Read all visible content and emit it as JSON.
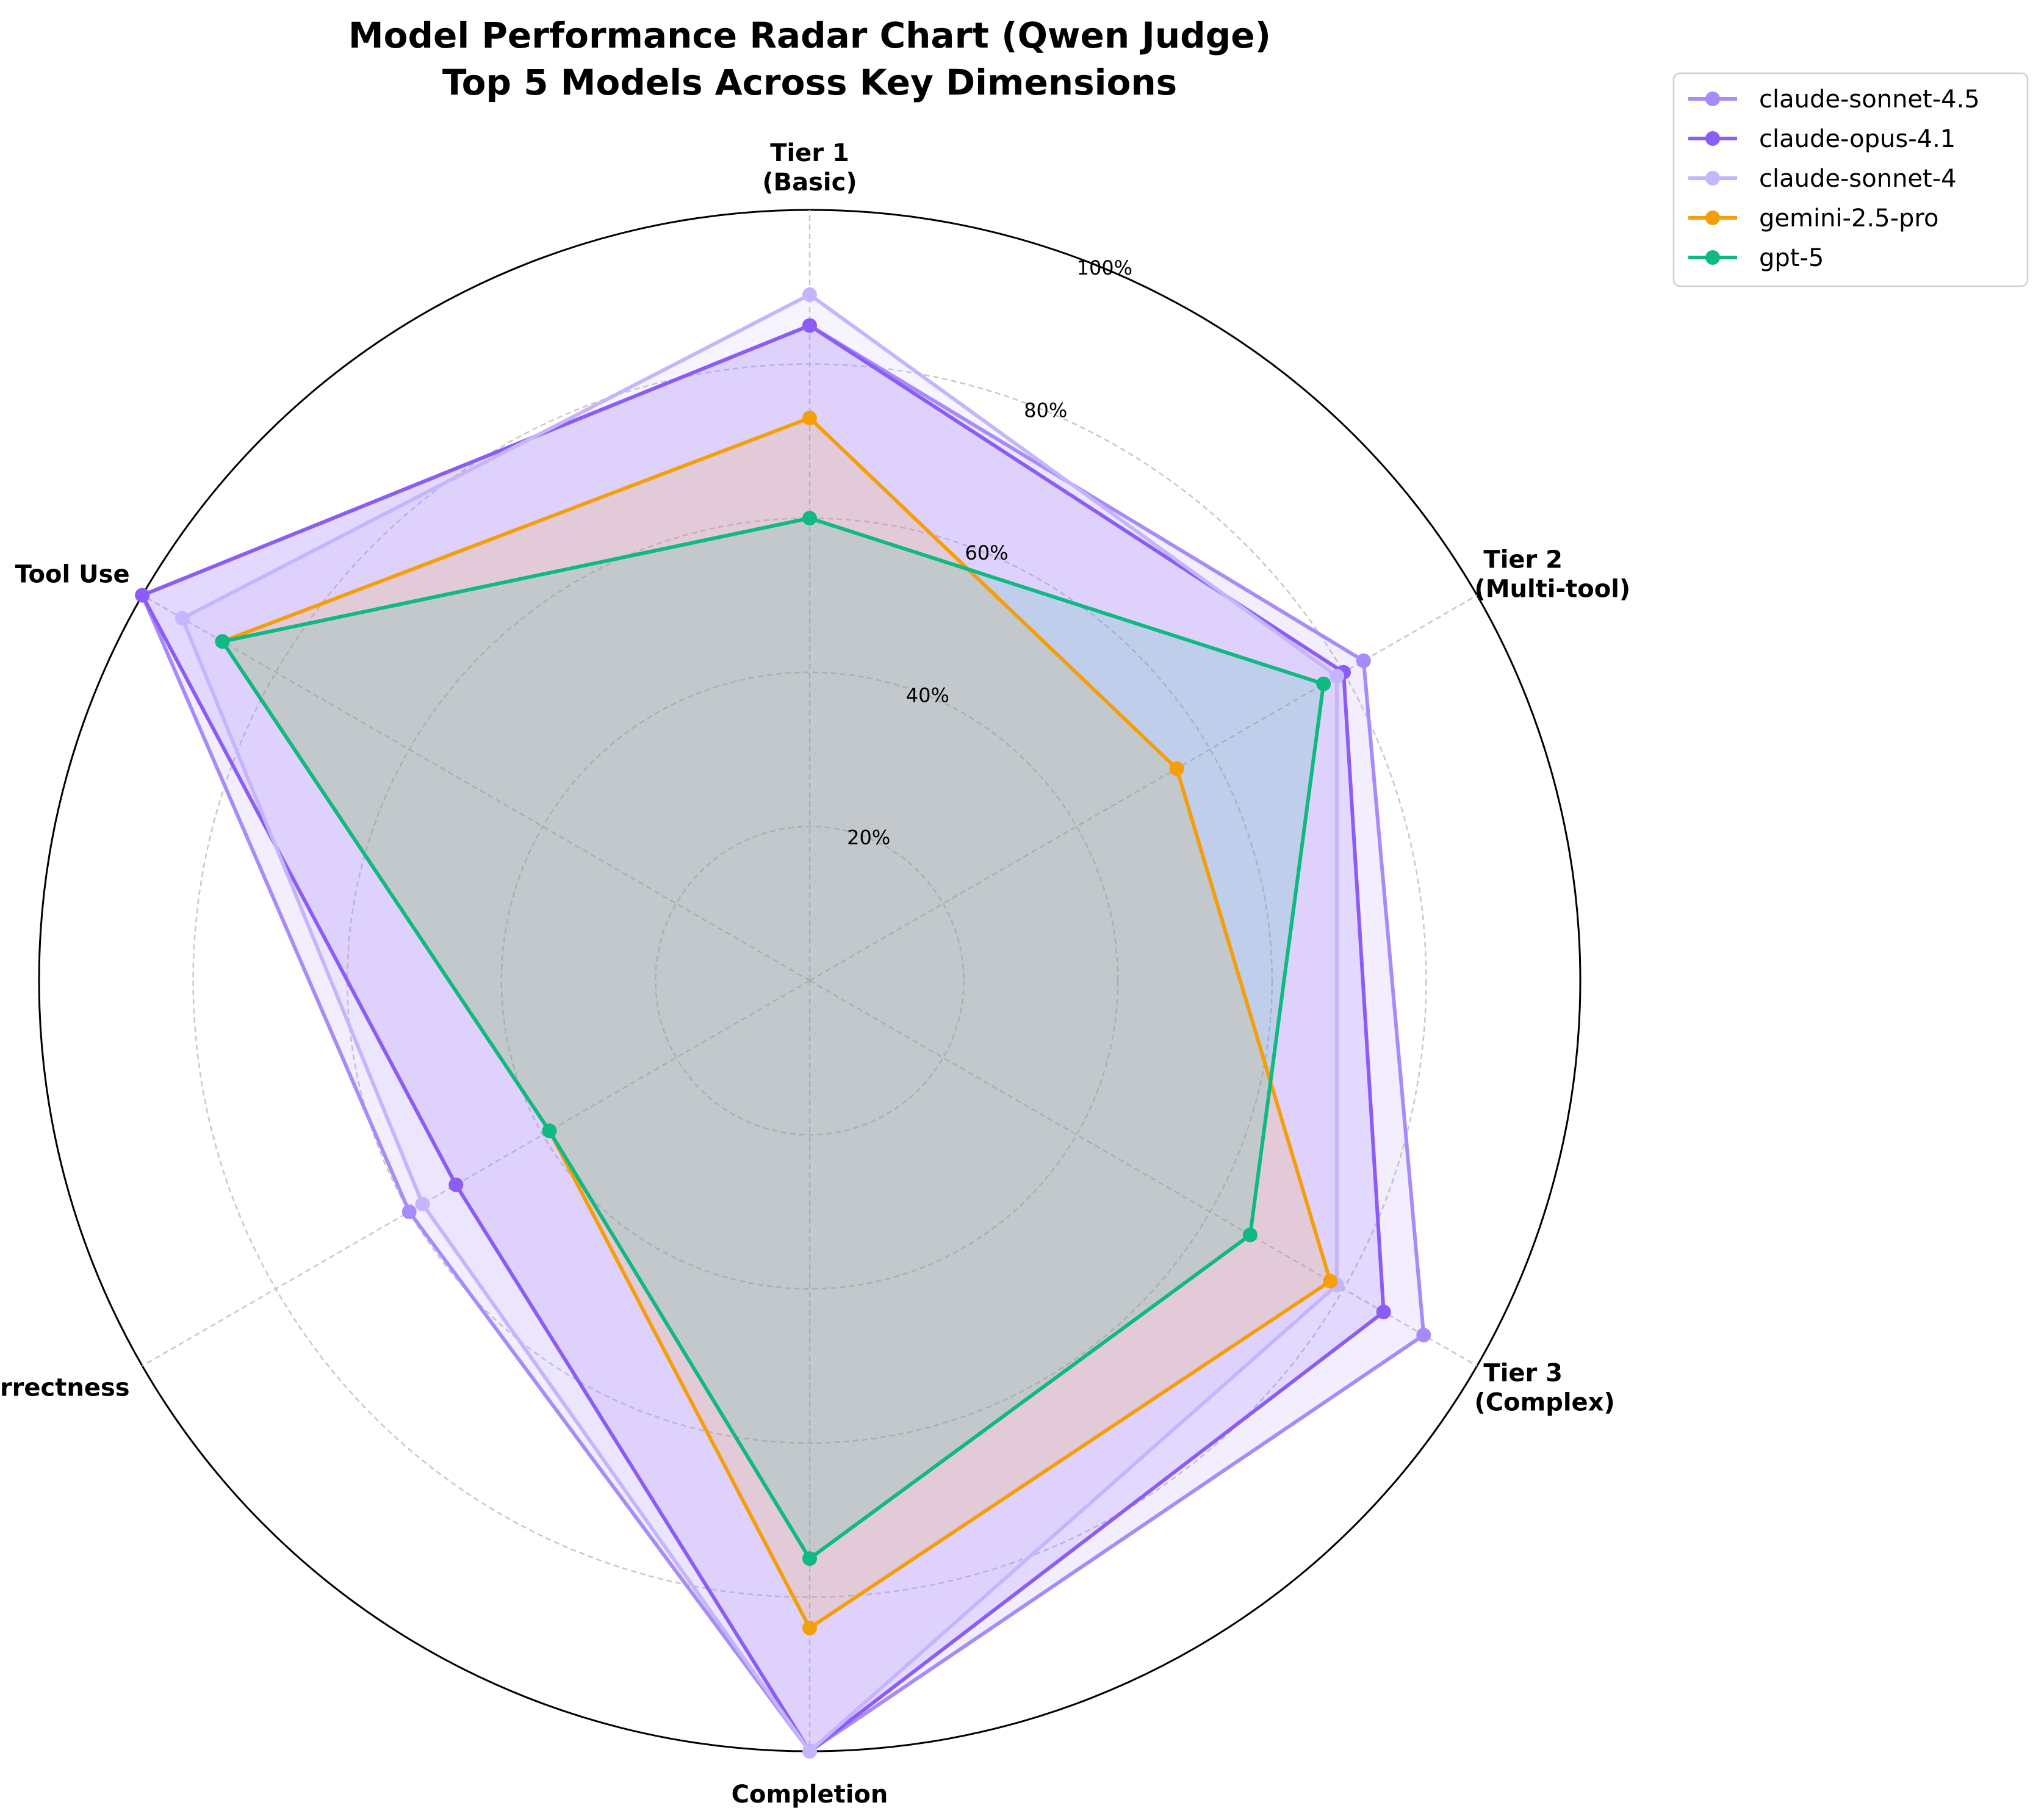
{
  "chart_data": {
    "type": "radar",
    "title": "Model Performance Radar Chart (Qwen Judge)",
    "subtitle": "Top 5 Models Across Key Dimensions",
    "axes": [
      {
        "line1": "Tier 1",
        "line2": "(Basic)"
      },
      {
        "line1": "Tier 2",
        "line2": "(Multi-tool)"
      },
      {
        "line1": "Tier 3",
        "line2": "(Complex)"
      },
      {
        "line1": "Completion",
        "line2": ""
      },
      {
        "line1": "Correctness",
        "line2": ""
      },
      {
        "line1": "Tool Use",
        "line2": ""
      }
    ],
    "rlim": [
      0,
      100
    ],
    "radial_ticks": [
      20,
      40,
      60,
      80,
      100
    ],
    "radial_tick_labels": [
      "20%",
      "40%",
      "60%",
      "80%",
      "100%"
    ],
    "grid": true,
    "legend_position": "outside-top-right",
    "series": [
      {
        "name": "claude-sonnet-4.5",
        "color": "#a78bfa",
        "values": [
          85,
          83,
          92,
          100,
          60,
          100
        ]
      },
      {
        "name": "claude-opus-4.1",
        "color": "#8b5cf6",
        "values": [
          85,
          80,
          86,
          100,
          53,
          100
        ]
      },
      {
        "name": "claude-sonnet-4",
        "color": "#c4b5fd",
        "values": [
          89,
          79,
          79,
          100,
          58,
          94
        ]
      },
      {
        "name": "gemini-2.5-pro",
        "color": "#f59e0b",
        "values": [
          73,
          55,
          78,
          84,
          39,
          88
        ]
      },
      {
        "name": "gpt-5",
        "color": "#10b981",
        "values": [
          60,
          77,
          66,
          75,
          39,
          88
        ]
      }
    ]
  }
}
